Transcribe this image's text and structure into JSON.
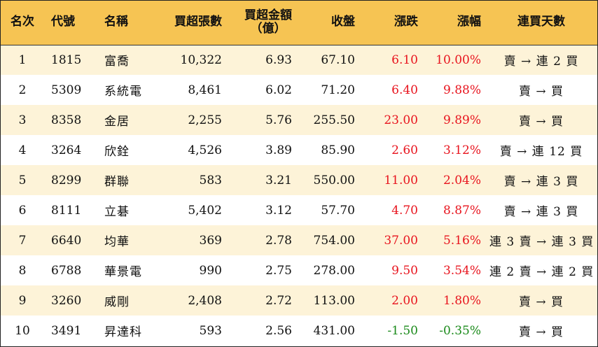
{
  "headers": {
    "rank": "名次",
    "code": "代號",
    "name": "名稱",
    "net_buy_lots": "買超張數",
    "net_buy_amount_line1": "買超金額",
    "net_buy_amount_line2": "（億）",
    "close": "收盤",
    "change": "漲跌",
    "pct_change": "漲幅",
    "streak": "連買天數"
  },
  "rows": [
    {
      "rank": "1",
      "code": "1815",
      "name": "富喬",
      "lots": "10,322",
      "amount": "6.93",
      "close": "67.10",
      "change": "6.10",
      "pct": "10.00%",
      "streak": "賣 → 連 2 買",
      "direction": "up"
    },
    {
      "rank": "2",
      "code": "5309",
      "name": "系統電",
      "lots": "8,461",
      "amount": "6.02",
      "close": "71.20",
      "change": "6.40",
      "pct": "9.88%",
      "streak": "賣 → 買",
      "direction": "up"
    },
    {
      "rank": "3",
      "code": "8358",
      "name": "金居",
      "lots": "2,255",
      "amount": "5.76",
      "close": "255.50",
      "change": "23.00",
      "pct": "9.89%",
      "streak": "賣 → 買",
      "direction": "up"
    },
    {
      "rank": "4",
      "code": "3264",
      "name": "欣銓",
      "lots": "4,526",
      "amount": "3.89",
      "close": "85.90",
      "change": "2.60",
      "pct": "3.12%",
      "streak": "賣 → 連 12 買",
      "direction": "up"
    },
    {
      "rank": "5",
      "code": "8299",
      "name": "群聯",
      "lots": "583",
      "amount": "3.21",
      "close": "550.00",
      "change": "11.00",
      "pct": "2.04%",
      "streak": "賣 → 連 3 買",
      "direction": "up"
    },
    {
      "rank": "6",
      "code": "8111",
      "name": "立碁",
      "lots": "5,402",
      "amount": "3.12",
      "close": "57.70",
      "change": "4.70",
      "pct": "8.87%",
      "streak": "賣 → 連 3 買",
      "direction": "up"
    },
    {
      "rank": "7",
      "code": "6640",
      "name": "均華",
      "lots": "369",
      "amount": "2.78",
      "close": "754.00",
      "change": "37.00",
      "pct": "5.16%",
      "streak": "連 3 賣 → 連 3 買",
      "direction": "up"
    },
    {
      "rank": "8",
      "code": "6788",
      "name": "華景電",
      "lots": "990",
      "amount": "2.75",
      "close": "278.00",
      "change": "9.50",
      "pct": "3.54%",
      "streak": "連 2 賣 → 連 2 買",
      "direction": "up"
    },
    {
      "rank": "9",
      "code": "3260",
      "name": "威剛",
      "lots": "2,408",
      "amount": "2.72",
      "close": "113.00",
      "change": "2.00",
      "pct": "1.80%",
      "streak": "賣 → 買",
      "direction": "up"
    },
    {
      "rank": "10",
      "code": "3491",
      "name": "昇達科",
      "lots": "593",
      "amount": "2.56",
      "close": "431.00",
      "change": "-1.50",
      "pct": "-0.35%",
      "streak": "賣 → 買",
      "direction": "down"
    }
  ],
  "colors": {
    "header_bg": "#f6c453",
    "odd_row_bg": "#fdf3d8",
    "up": "#e8141e",
    "down": "#1a8a1a"
  }
}
